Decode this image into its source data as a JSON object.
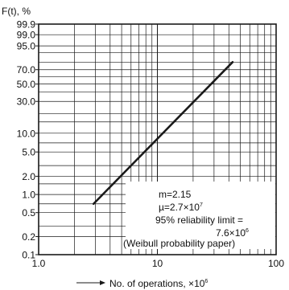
{
  "chart_data": {
    "type": "line",
    "title": "",
    "ylabel": "F(t), %",
    "xlabel_prefix": "No. of operations, ×10",
    "xlabel_exp": "6",
    "x_scale": "log",
    "y_scale": "weibull",
    "xlim": [
      1,
      100
    ],
    "ylim": [
      0.1,
      99.9
    ],
    "grid": true,
    "x_ticks": [
      {
        "value": 1,
        "label": "1.0"
      },
      {
        "value": 10,
        "label": "10"
      },
      {
        "value": 100,
        "label": "100"
      }
    ],
    "y_ticks": [
      {
        "value": 99.9,
        "label": "99.9"
      },
      {
        "value": 99.0,
        "label": "99.0"
      },
      {
        "value": 95.0,
        "label": "95.0"
      },
      {
        "value": 70.0,
        "label": "70.0"
      },
      {
        "value": 50.0,
        "label": "50.0"
      },
      {
        "value": 30.0,
        "label": "30.0"
      },
      {
        "value": 10.0,
        "label": "10.0"
      },
      {
        "value": 5.0,
        "label": "5.0"
      },
      {
        "value": 2.0,
        "label": "2.0"
      },
      {
        "value": 1.0,
        "label": "1.0"
      },
      {
        "value": 0.5,
        "label": "0.5"
      },
      {
        "value": 0.2,
        "label": "0.2"
      },
      {
        "value": 0.1,
        "label": "0.1"
      }
    ],
    "series": [
      {
        "x": [
          2.9,
          43
        ],
        "y": [
          0.7,
          80
        ]
      }
    ],
    "annotations": {
      "m": "m=2.15",
      "mu_prefix": "µ=2.7×10",
      "mu_exp": "7",
      "reliability": "95% reliability limit =",
      "reliability_value_prefix": "7.6×10",
      "reliability_value_exp": "6",
      "paper": "(Weibull probability paper)"
    },
    "colors": {
      "line": "#1a1a1a",
      "grid": "#1a1a1a"
    }
  }
}
